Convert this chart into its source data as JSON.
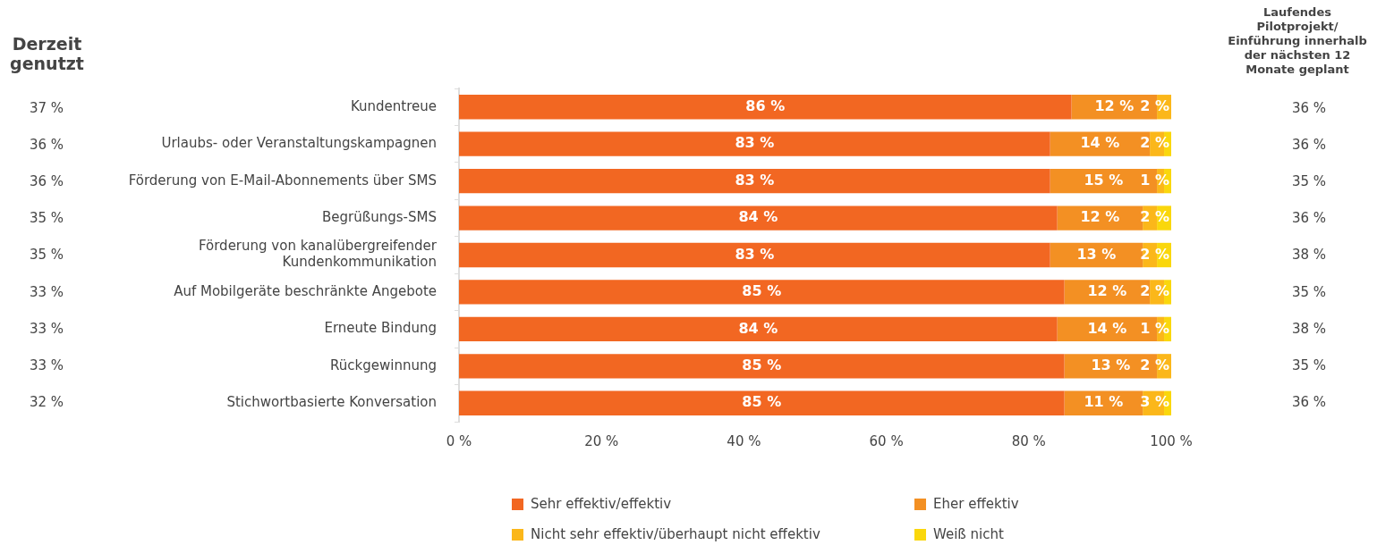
{
  "chart_data": {
    "type": "bar",
    "orientation": "horizontal",
    "stacked": true,
    "categories": [
      "Kundentreue",
      "Urlaubs- oder Veranstaltungskampagnen",
      "Förderung von E-Mail-Abonnements über SMS",
      "Begrüßungs-SMS",
      "Förderung von kanalübergreifender Kundenkommunikation",
      "Auf Mobilgeräte beschränkte Angebote",
      "Erneute Bindung",
      "Rückgewinnung",
      "Stichwortbasierte Konversation"
    ],
    "series": [
      {
        "name": "Sehr effektiv/effektiv",
        "color": "#f26722",
        "values": [
          86,
          83,
          83,
          84,
          83,
          85,
          84,
          85,
          85
        ],
        "value_labels": [
          "86 %",
          "83 %",
          "83 %",
          "84 %",
          "83 %",
          "85 %",
          "84 %",
          "85 %",
          "85 %"
        ]
      },
      {
        "name": "Eher effektiv",
        "color": "#f39023",
        "values": [
          12,
          14,
          15,
          12,
          13,
          12,
          14,
          13,
          11
        ],
        "value_labels": [
          "12 %",
          "14 %",
          "15 %",
          "12 %",
          "13 %",
          "12 %",
          "14 %",
          "13 %",
          "11 %"
        ]
      },
      {
        "name": "Nicht sehr effektiv/überhaupt nicht effektiv",
        "color": "#fbb71a",
        "values": [
          2,
          2,
          1,
          2,
          2,
          2,
          1,
          2,
          3
        ],
        "value_labels": [
          "2 %",
          "2 %",
          "1 %",
          "2 %",
          "2 %",
          "2 %",
          "1 %",
          "2 %",
          "3 %"
        ]
      },
      {
        "name": "Weiß nicht",
        "color": "#fad70c",
        "values": [
          0,
          1,
          1,
          2,
          2,
          1,
          1,
          0,
          1
        ]
      }
    ],
    "xlim": [
      0,
      100
    ],
    "xticks": [
      {
        "value": 0,
        "label": "0 %"
      },
      {
        "value": 20,
        "label": "20 %"
      },
      {
        "value": 40,
        "label": "40 %"
      },
      {
        "value": 60,
        "label": "60 %"
      },
      {
        "value": 80,
        "label": "80 %"
      },
      {
        "value": 100,
        "label": "100 %"
      }
    ],
    "grid": false,
    "legend": "bottom",
    "annotations": [
      "Derzeit genutzt",
      "37 %",
      "36 %",
      "36 %",
      "35 %",
      "35 %",
      "33 %",
      "33 %",
      "33 %",
      "32 %",
      "Laufendes Pilotprojekt/ Einführung innerhalb der nächsten 12 Monate geplant",
      "36 %",
      "36 %",
      "35 %",
      "36 %",
      "38 %",
      "35 %",
      "38 %",
      "35 %",
      "36 %"
    ]
  }
}
